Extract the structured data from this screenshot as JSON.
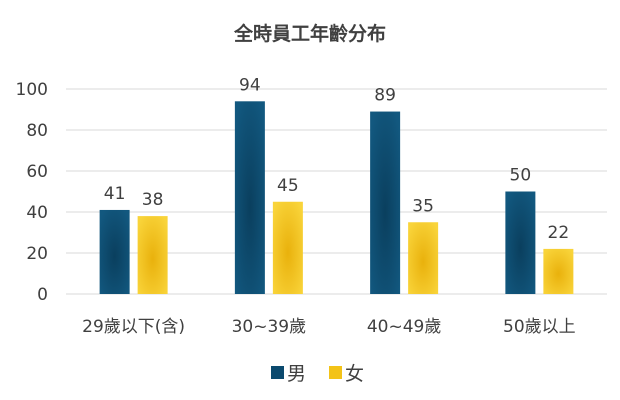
{
  "chart_data": {
    "type": "bar",
    "title": "全時員工年齡分布",
    "categories": [
      "29歲以下(含)",
      "30~39歲",
      "40~49歲",
      "50歲以上"
    ],
    "series": [
      {
        "name": "男",
        "values": [
          41,
          94,
          89,
          50
        ],
        "color": "#0b4a6e"
      },
      {
        "name": "女",
        "values": [
          38,
          45,
          35,
          22
        ],
        "color": "#f3c318"
      }
    ],
    "ylim": [
      0,
      100
    ],
    "yticks": [
      0,
      20,
      40,
      60,
      80,
      100
    ],
    "grid": true,
    "legend_position": "bottom",
    "xlabel": "",
    "ylabel": ""
  }
}
